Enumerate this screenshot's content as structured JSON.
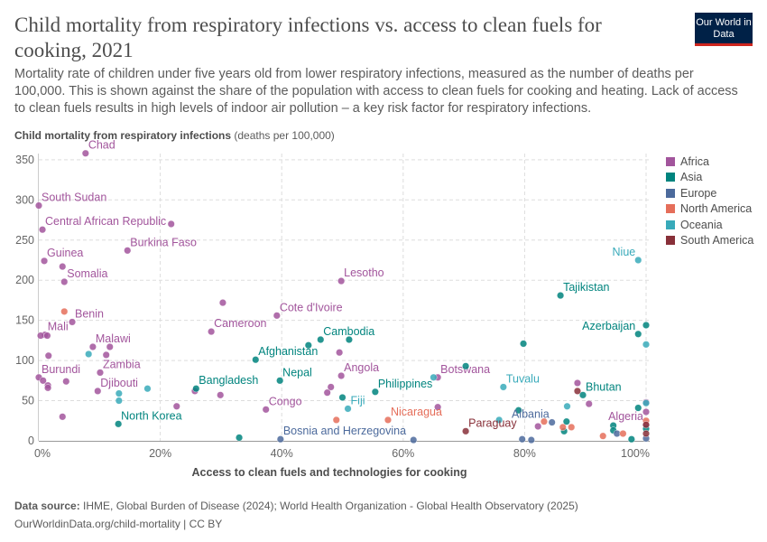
{
  "header": {
    "title": "Child mortality from respiratory infections vs. access to clean fuels for cooking, 2021",
    "subtitle": "Mortality rate of children under five years old from lower respiratory infections, measured as the number of deaths per 100,000. This is shown against the share of the population with access to clean fuels for cooking and heating. Lack of access to clean fuels results in high levels of indoor air pollution – a key risk factor for respiratory infections.",
    "logo": "Our World in Data"
  },
  "footer": {
    "source_label": "Data source:",
    "source": "IHME, Global Burden of Disease (2024); World Health Organization - Global Health Observatory (2025)",
    "url_license": "OurWorldinData.org/child-mortality | CC BY"
  },
  "colors": {
    "Africa": "#a2559c",
    "Asia": "#00847e",
    "Europe": "#4c6a9c",
    "North America": "#e56e5a",
    "Oceania": "#38aaba",
    "South America": "#883039"
  },
  "chart_data": {
    "type": "scatter",
    "ylabel": "Child mortality from respiratory infections",
    "yunit": "(deaths per 100,000)",
    "xlabel": "Access to clean fuels and technologies for cooking",
    "xlim": [
      0,
      100
    ],
    "ylim": [
      0,
      350
    ],
    "xticks": [
      "0%",
      "20%",
      "40%",
      "60%",
      "80%",
      "100%"
    ],
    "yticks": [
      "0",
      "50",
      "100",
      "150",
      "200",
      "250",
      "300",
      "350"
    ],
    "grid": true,
    "legend_position": "right",
    "legend": [
      "Africa",
      "Asia",
      "Europe",
      "North America",
      "Oceania",
      "South America"
    ],
    "points": [
      {
        "region": "Africa",
        "x": 7.7,
        "y": 358,
        "label": "Chad"
      },
      {
        "region": "Africa",
        "x": 0,
        "y": 293,
        "label": "South Sudan"
      },
      {
        "region": "Africa",
        "x": 0.6,
        "y": 263,
        "label": "Central African Republic"
      },
      {
        "region": "Africa",
        "x": 14.6,
        "y": 237,
        "label": "Burkina Faso"
      },
      {
        "region": "Africa",
        "x": 0.9,
        "y": 224,
        "label": "Guinea"
      },
      {
        "region": "Africa",
        "x": 4.2,
        "y": 198,
        "label": "Somalia"
      },
      {
        "region": "Africa",
        "x": 3.9,
        "y": 217
      },
      {
        "region": "Africa",
        "x": 5.5,
        "y": 148,
        "label": "Benin"
      },
      {
        "region": "Africa",
        "x": 21.8,
        "y": 270
      },
      {
        "region": "Africa",
        "x": 1,
        "y": 132,
        "label": "Mali"
      },
      {
        "region": "Africa",
        "x": 0.3,
        "y": 131
      },
      {
        "region": "Africa",
        "x": 1.4,
        "y": 131
      },
      {
        "region": "Africa",
        "x": 8.9,
        "y": 117,
        "label": "Malawi"
      },
      {
        "region": "Africa",
        "x": 11.7,
        "y": 117
      },
      {
        "region": "Africa",
        "x": 11.1,
        "y": 107
      },
      {
        "region": "Africa",
        "x": 1.6,
        "y": 106
      },
      {
        "region": "Africa",
        "x": 10.1,
        "y": 85,
        "label": "Zambia"
      },
      {
        "region": "Africa",
        "x": 0,
        "y": 79,
        "label": "Burundi"
      },
      {
        "region": "Africa",
        "x": 0.7,
        "y": 75
      },
      {
        "region": "Africa",
        "x": 1.5,
        "y": 69
      },
      {
        "region": "Africa",
        "x": 1.5,
        "y": 66
      },
      {
        "region": "Africa",
        "x": 4.5,
        "y": 74
      },
      {
        "region": "Africa",
        "x": 9.7,
        "y": 62,
        "label": "Djibouti"
      },
      {
        "region": "Africa",
        "x": 3.9,
        "y": 30
      },
      {
        "region": "Africa",
        "x": 28.4,
        "y": 136,
        "label": "Cameroon"
      },
      {
        "region": "Africa",
        "x": 30.3,
        "y": 172
      },
      {
        "region": "Africa",
        "x": 39.2,
        "y": 156,
        "label": "Cote d'Ivoire"
      },
      {
        "region": "Africa",
        "x": 22.7,
        "y": 43
      },
      {
        "region": "Africa",
        "x": 25.7,
        "y": 62
      },
      {
        "region": "Africa",
        "x": 29.9,
        "y": 57
      },
      {
        "region": "Africa",
        "x": 37.4,
        "y": 39,
        "label": "Congo"
      },
      {
        "region": "Africa",
        "x": 49.8,
        "y": 199,
        "label": "Lesotho"
      },
      {
        "region": "Africa",
        "x": 49.5,
        "y": 110
      },
      {
        "region": "Africa",
        "x": 49.8,
        "y": 81,
        "label": "Angola"
      },
      {
        "region": "Africa",
        "x": 48.1,
        "y": 67
      },
      {
        "region": "Africa",
        "x": 47.5,
        "y": 60
      },
      {
        "region": "Africa",
        "x": 65.7,
        "y": 79,
        "label": "Botswana"
      },
      {
        "region": "Africa",
        "x": 65.7,
        "y": 42
      },
      {
        "region": "Africa",
        "x": 88.7,
        "y": 72
      },
      {
        "region": "Africa",
        "x": 82.2,
        "y": 18
      },
      {
        "region": "Africa",
        "x": 90.6,
        "y": 46
      },
      {
        "region": "Africa",
        "x": 100,
        "y": 20,
        "label": "Algeria"
      },
      {
        "region": "Africa",
        "x": 100,
        "y": 48
      },
      {
        "region": "Africa",
        "x": 100,
        "y": 36
      },
      {
        "region": "Asia",
        "x": 85.9,
        "y": 181,
        "label": "Tajikistan"
      },
      {
        "region": "Asia",
        "x": 98.7,
        "y": 133,
        "label": "Azerbaijan"
      },
      {
        "region": "Asia",
        "x": 100,
        "y": 144
      },
      {
        "region": "Asia",
        "x": 46.4,
        "y": 126,
        "label": "Cambodia"
      },
      {
        "region": "Asia",
        "x": 51.1,
        "y": 126
      },
      {
        "region": "Asia",
        "x": 44.4,
        "y": 119
      },
      {
        "region": "Asia",
        "x": 35.7,
        "y": 101,
        "label": "Afghanistan"
      },
      {
        "region": "Asia",
        "x": 39.7,
        "y": 75,
        "label": "Nepal"
      },
      {
        "region": "Asia",
        "x": 25.9,
        "y": 65,
        "label": "Bangladesh"
      },
      {
        "region": "Asia",
        "x": 13.1,
        "y": 21,
        "label": "North Korea"
      },
      {
        "region": "Asia",
        "x": 33,
        "y": 4
      },
      {
        "region": "Asia",
        "x": 55.4,
        "y": 61,
        "label": "Philippines"
      },
      {
        "region": "Asia",
        "x": 50,
        "y": 54
      },
      {
        "region": "Asia",
        "x": 79.8,
        "y": 121
      },
      {
        "region": "Asia",
        "x": 70.3,
        "y": 93
      },
      {
        "region": "Asia",
        "x": 79,
        "y": 38
      },
      {
        "region": "Asia",
        "x": 89.6,
        "y": 57,
        "label": "Bhutan"
      },
      {
        "region": "Asia",
        "x": 98.7,
        "y": 41
      },
      {
        "region": "Asia",
        "x": 86.9,
        "y": 24
      },
      {
        "region": "Asia",
        "x": 94.6,
        "y": 19
      },
      {
        "region": "Asia",
        "x": 94.6,
        "y": 13
      },
      {
        "region": "Asia",
        "x": 86.5,
        "y": 12
      },
      {
        "region": "Asia",
        "x": 97.6,
        "y": 2
      },
      {
        "region": "Asia",
        "x": 100,
        "y": 15
      },
      {
        "region": "Europe",
        "x": 39.8,
        "y": 2,
        "label": "Bosnia and Herzegovina"
      },
      {
        "region": "Europe",
        "x": 61.7,
        "y": 1
      },
      {
        "region": "Europe",
        "x": 79.6,
        "y": 2
      },
      {
        "region": "Europe",
        "x": 81.1,
        "y": 1
      },
      {
        "region": "Europe",
        "x": 84.5,
        "y": 23,
        "label": "Albania"
      },
      {
        "region": "Europe",
        "x": 95.2,
        "y": 9
      },
      {
        "region": "Europe",
        "x": 100,
        "y": 3
      },
      {
        "region": "North America",
        "x": 4.2,
        "y": 161
      },
      {
        "region": "North America",
        "x": 49,
        "y": 26
      },
      {
        "region": "North America",
        "x": 57.5,
        "y": 26,
        "label": "Nicaragua"
      },
      {
        "region": "North America",
        "x": 83.2,
        "y": 24
      },
      {
        "region": "North America",
        "x": 86.3,
        "y": 17
      },
      {
        "region": "North America",
        "x": 87.7,
        "y": 17
      },
      {
        "region": "North America",
        "x": 92.9,
        "y": 6
      },
      {
        "region": "North America",
        "x": 96.2,
        "y": 9
      },
      {
        "region": "North America",
        "x": 100,
        "y": 25
      },
      {
        "region": "Oceania",
        "x": 98.7,
        "y": 225,
        "label": "Niue"
      },
      {
        "region": "Oceania",
        "x": 100,
        "y": 120
      },
      {
        "region": "Oceania",
        "x": 8.2,
        "y": 108
      },
      {
        "region": "Oceania",
        "x": 13.2,
        "y": 59
      },
      {
        "region": "Oceania",
        "x": 13.2,
        "y": 50
      },
      {
        "region": "Oceania",
        "x": 17.9,
        "y": 65
      },
      {
        "region": "Oceania",
        "x": 50.9,
        "y": 40,
        "label": "Fiji"
      },
      {
        "region": "Oceania",
        "x": 65,
        "y": 79
      },
      {
        "region": "Oceania",
        "x": 76.5,
        "y": 67,
        "label": "Tuvalu"
      },
      {
        "region": "Oceania",
        "x": 75.8,
        "y": 26
      },
      {
        "region": "Oceania",
        "x": 87,
        "y": 43
      },
      {
        "region": "Oceania",
        "x": 100,
        "y": 47
      },
      {
        "region": "South America",
        "x": 70.3,
        "y": 12,
        "label": "Paraguay"
      },
      {
        "region": "South America",
        "x": 88.7,
        "y": 62
      },
      {
        "region": "South America",
        "x": 100,
        "y": 20
      },
      {
        "region": "South America",
        "x": 100,
        "y": 9
      }
    ]
  }
}
